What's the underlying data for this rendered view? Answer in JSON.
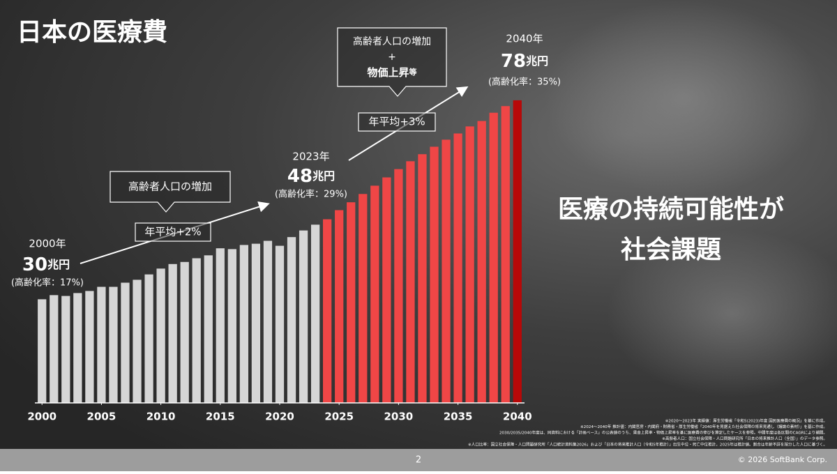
{
  "header": {
    "title": "日本の医療費"
  },
  "chart_data": {
    "type": "bar",
    "x": [
      2000,
      2001,
      2002,
      2003,
      2004,
      2005,
      2006,
      2007,
      2008,
      2009,
      2010,
      2011,
      2012,
      2013,
      2014,
      2015,
      2016,
      2017,
      2018,
      2019,
      2020,
      2021,
      2022,
      2023,
      2024,
      2025,
      2026,
      2027,
      2028,
      2029,
      2030,
      2031,
      2032,
      2033,
      2034,
      2035,
      2036,
      2037,
      2038,
      2039,
      2040
    ],
    "values": [
      30,
      31,
      30.8,
      31.5,
      32,
      33,
      33,
      34,
      34.7,
      36,
      37.4,
      38.5,
      39,
      39.9,
      40.6,
      42.3,
      42.1,
      43.1,
      43.4,
      44.1,
      42.9,
      45,
      46.6,
      48,
      49.3,
      51.5,
      53.4,
      55.4,
      57.4,
      59.4,
      61.4,
      63.3,
      65,
      66.8,
      68.5,
      70,
      71.7,
      73,
      75,
      76.6,
      78
    ],
    "colors": [
      "#d6d6d6",
      "#d6d6d6",
      "#d6d6d6",
      "#d6d6d6",
      "#d6d6d6",
      "#d6d6d6",
      "#d6d6d6",
      "#d6d6d6",
      "#d6d6d6",
      "#d6d6d6",
      "#d6d6d6",
      "#d6d6d6",
      "#d6d6d6",
      "#d6d6d6",
      "#d6d6d6",
      "#d6d6d6",
      "#d6d6d6",
      "#d6d6d6",
      "#d6d6d6",
      "#d6d6d6",
      "#d6d6d6",
      "#d6d6d6",
      "#d6d6d6",
      "#d6d6d6",
      "#f04646",
      "#f04646",
      "#f04646",
      "#f04646",
      "#f04646",
      "#f04646",
      "#f04646",
      "#f04646",
      "#f04646",
      "#f04646",
      "#f04646",
      "#f04646",
      "#f04646",
      "#f04646",
      "#f04646",
      "#f04646",
      "#b80808"
    ],
    "xlim": [
      1999.4,
      2040.6
    ],
    "xticks": [
      2000,
      2005,
      2010,
      2015,
      2020,
      2025,
      2030,
      2035,
      2040
    ],
    "ylim": [
      5,
      80
    ]
  },
  "annotations": {
    "start": {
      "year": "2000年",
      "amount": "30",
      "unit": "兆円",
      "rate": "(高齢化率：17%)"
    },
    "mid": {
      "year": "2023年",
      "amount": "48",
      "unit": "兆円",
      "rate": "(高齢化率：29%)"
    },
    "end": {
      "year": "2040年",
      "amount": "78",
      "unit": "兆円",
      "rate": "(高齢化率：35%)"
    },
    "callout1": "高齢者人口の増加",
    "growth1": "年平均+2%",
    "callout2": {
      "line1": "高齢者人口の増加",
      "line2": "+",
      "line3": "物価上昇",
      "suffix": "等"
    },
    "growth2": "年平均+3%"
  },
  "message": {
    "line1": "医療の持続可能性が",
    "line2": "社会課題"
  },
  "notes": [
    "※2020～2023年 実績値：厚生労働省「令和5(2023)年度 国民医療費の概況」を基に作成。",
    "※2024～2040年 推計値：内閣官房・内閣府・財務省・厚生労働省「2040年を見据えた社会保障の将来見通し（議論の素材）」を基に作成。",
    "2030/2035/2040年度は、同資料における「計画ベース」の公表値のうち、賃金上昇率・物価上昇率を基に医療費の伸びを算定したケースを参照。中間年度は各区間のCAGRにより補間。",
    "※高齢者人口：国立社会保障・人口問題研究所「日本の将来推計人口（全国）」のデータ参照。",
    "※人口比率：国立社会保障・人口問題研究所「人口統計資料集2026」および「日本の将来推計人口（令和5年推計）」出生中位・死亡中位推計。2025年は推計値。割合は年齢不詳を按分した人口に基づく。"
  ],
  "footer": {
    "page": "2",
    "copyright": "© 2026 SoftBank Corp."
  }
}
